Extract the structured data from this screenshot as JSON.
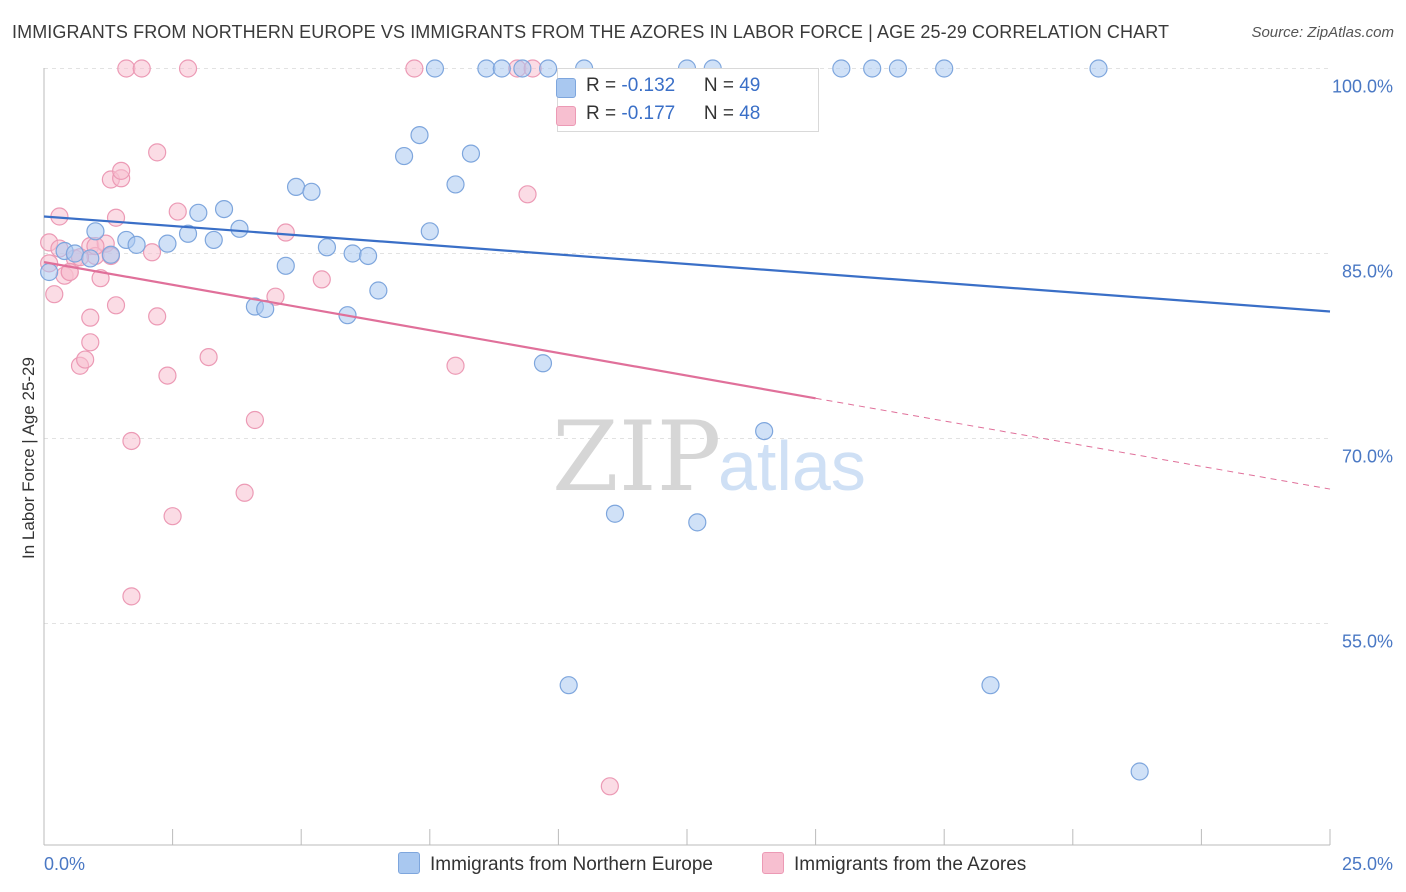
{
  "title": "IMMIGRANTS FROM NORTHERN EUROPE VS IMMIGRANTS FROM THE AZORES IN LABOR FORCE | AGE 25-29 CORRELATION CHART",
  "source": "Source: ZipAtlas.com",
  "watermark": {
    "zip": "ZIP",
    "atlas": "atlas"
  },
  "colors": {
    "blue_fill": "#a9c8f0",
    "blue_stroke": "#7ea6dd",
    "blue_line": "#3a6fc7",
    "pink_fill": "#f7bfd0",
    "pink_stroke": "#ec9ab5",
    "pink_line": "#e0709a",
    "grid": "#e2e2e2",
    "tick_label": "#4a78c4"
  },
  "legend": {
    "rows": [
      {
        "r_label": "R = ",
        "r_value": "-0.132",
        "n_label": "N = ",
        "n_value": "49"
      },
      {
        "r_label": "R = ",
        "r_value": "-0.177",
        "n_label": "N = ",
        "n_value": "48"
      }
    ]
  },
  "chart_data": {
    "type": "scatter",
    "title": "IMMIGRANTS FROM NORTHERN EUROPE VS IMMIGRANTS FROM THE AZORES IN LABOR FORCE | AGE 25-29 CORRELATION CHART",
    "xlabel": "",
    "ylabel": "In Labor Force | Age 25-29",
    "xlim": [
      0,
      25
    ],
    "ylim": [
      38.5,
      101.5
    ],
    "x_tick_labels": [
      "0.0%",
      "25.0%"
    ],
    "y_ticks": [
      {
        "value": 100,
        "label": "100.0%"
      },
      {
        "value": 85,
        "label": "85.0%"
      },
      {
        "value": 70,
        "label": "70.0%"
      },
      {
        "value": 55,
        "label": "55.0%"
      }
    ],
    "grid": true,
    "legend_position": "bottom",
    "series": [
      {
        "name": "Immigrants from Northern Europe",
        "color": "#a9c8f0",
        "trend": {
          "x": [
            0,
            25
          ],
          "y": [
            88.0,
            80.3
          ],
          "dashed_from": null
        },
        "points": [
          [
            0.1,
            83.5
          ],
          [
            0.4,
            85.2
          ],
          [
            0.6,
            85.0
          ],
          [
            0.9,
            84.6
          ],
          [
            1.0,
            86.8
          ],
          [
            1.3,
            84.9
          ],
          [
            1.6,
            86.1
          ],
          [
            1.8,
            85.7
          ],
          [
            2.4,
            85.8
          ],
          [
            2.8,
            86.6
          ],
          [
            3.0,
            88.3
          ],
          [
            3.3,
            86.1
          ],
          [
            3.5,
            88.6
          ],
          [
            3.8,
            87.0
          ],
          [
            4.1,
            80.7
          ],
          [
            4.3,
            80.5
          ],
          [
            4.7,
            84.0
          ],
          [
            4.9,
            90.4
          ],
          [
            5.2,
            90.0
          ],
          [
            5.5,
            85.5
          ],
          [
            5.9,
            80.0
          ],
          [
            6.0,
            85.0
          ],
          [
            6.3,
            84.8
          ],
          [
            6.5,
            82.0
          ],
          [
            7.0,
            92.9
          ],
          [
            7.3,
            94.6
          ],
          [
            7.5,
            86.8
          ],
          [
            7.6,
            100.0
          ],
          [
            8.0,
            90.6
          ],
          [
            8.3,
            93.1
          ],
          [
            8.6,
            100.0
          ],
          [
            8.9,
            100.0
          ],
          [
            9.3,
            100.0
          ],
          [
            9.7,
            76.1
          ],
          [
            9.8,
            100.0
          ],
          [
            10.2,
            50.0
          ],
          [
            10.5,
            100.0
          ],
          [
            11.1,
            63.9
          ],
          [
            12.5,
            100.0
          ],
          [
            12.7,
            63.2
          ],
          [
            13.0,
            100.0
          ],
          [
            14.0,
            70.6
          ],
          [
            15.5,
            100.0
          ],
          [
            16.1,
            100.0
          ],
          [
            16.6,
            100.0
          ],
          [
            17.5,
            100.0
          ],
          [
            18.4,
            50.0
          ],
          [
            20.5,
            100.0
          ],
          [
            21.3,
            43.0
          ]
        ]
      },
      {
        "name": "Immigrants from the Azores",
        "color": "#f7bfd0",
        "trend": {
          "x": [
            0,
            25
          ],
          "y": [
            84.3,
            65.9
          ],
          "dashed_from": 15.0
        },
        "points": [
          [
            0.1,
            84.2
          ],
          [
            0.1,
            85.9
          ],
          [
            0.2,
            81.7
          ],
          [
            0.3,
            88.0
          ],
          [
            0.4,
            83.2
          ],
          [
            0.5,
            83.5
          ],
          [
            0.6,
            84.6
          ],
          [
            0.7,
            75.9
          ],
          [
            0.8,
            76.4
          ],
          [
            0.9,
            85.6
          ],
          [
            0.9,
            77.8
          ],
          [
            0.9,
            79.8
          ],
          [
            1.0,
            84.8
          ],
          [
            1.1,
            83.0
          ],
          [
            1.2,
            85.8
          ],
          [
            1.3,
            84.8
          ],
          [
            1.3,
            91.0
          ],
          [
            1.4,
            87.9
          ],
          [
            1.4,
            80.8
          ],
          [
            1.5,
            91.1
          ],
          [
            1.5,
            91.7
          ],
          [
            1.6,
            100.0
          ],
          [
            1.7,
            57.2
          ],
          [
            1.7,
            69.8
          ],
          [
            1.9,
            100.0
          ],
          [
            2.1,
            85.1
          ],
          [
            2.2,
            93.2
          ],
          [
            2.2,
            79.9
          ],
          [
            2.4,
            75.1
          ],
          [
            2.5,
            63.7
          ],
          [
            2.6,
            88.4
          ],
          [
            2.8,
            100.0
          ],
          [
            3.2,
            76.6
          ],
          [
            3.9,
            65.6
          ],
          [
            4.1,
            71.5
          ],
          [
            4.5,
            81.5
          ],
          [
            4.7,
            86.7
          ],
          [
            5.4,
            82.9
          ],
          [
            7.2,
            100.0
          ],
          [
            8.0,
            75.9
          ],
          [
            9.2,
            100.0
          ],
          [
            9.4,
            89.8
          ],
          [
            9.5,
            100.0
          ],
          [
            11.0,
            41.8
          ],
          [
            0.5,
            83.5
          ],
          [
            0.3,
            85.4
          ],
          [
            1.0,
            85.6
          ],
          [
            0.7,
            84.7
          ]
        ]
      }
    ]
  }
}
